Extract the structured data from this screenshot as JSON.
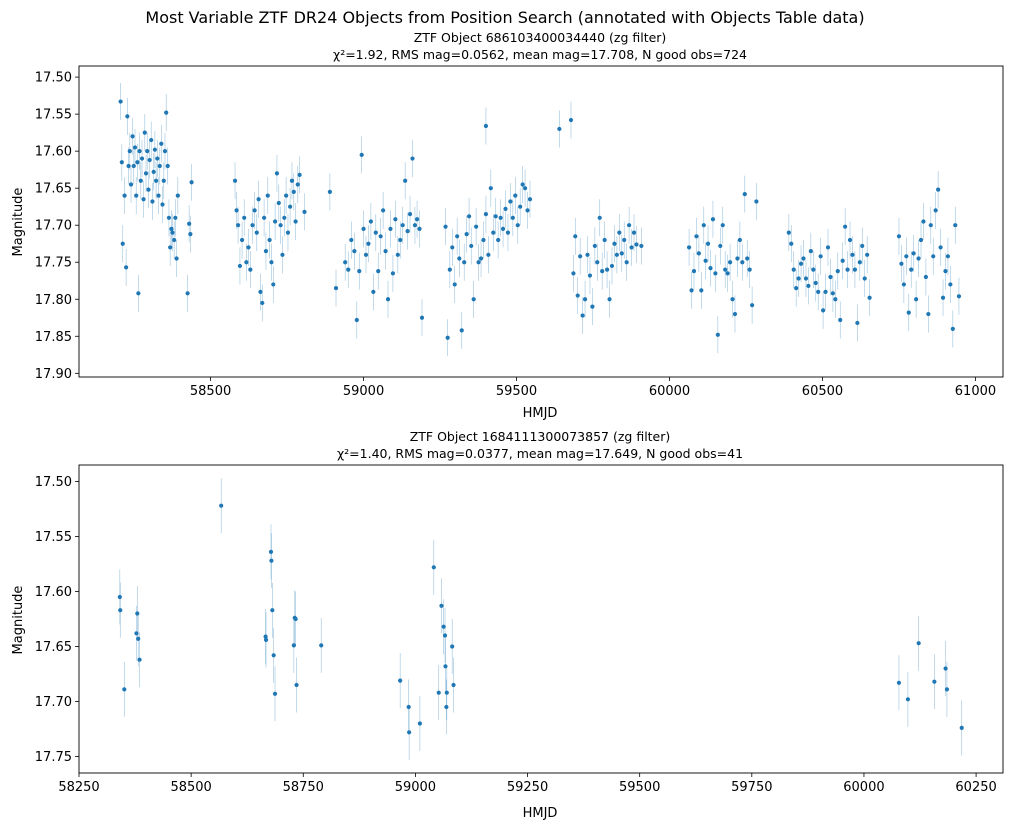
{
  "figure": {
    "suptitle": "Most Variable ZTF DR24 Objects from Position Search (annotated with Objects Table data)"
  },
  "colors": {
    "marker": "#1f77b4",
    "errorbar": "#1f77b4",
    "axes": "#000000"
  },
  "chart_data": [
    {
      "type": "scatter",
      "title": "ZTF Object 686103400034440  (zg filter)",
      "subtitle": "χ²=1.92,  RMS mag=0.0562,  mean mag=17.708,  N good obs=724",
      "xlabel": "HMJD",
      "ylabel": "Magnitude",
      "xlim": [
        58070,
        61090
      ],
      "ylim": [
        17.905,
        17.485
      ],
      "y_inverted": true,
      "xticks": [
        58500,
        59000,
        59500,
        60000,
        60500,
        61000
      ],
      "yticks": [
        17.5,
        17.55,
        17.6,
        17.65,
        17.7,
        17.75,
        17.8,
        17.85,
        17.9
      ],
      "typical_error": 0.025,
      "points": [
        [
          58206,
          17.533
        ],
        [
          58210,
          17.615
        ],
        [
          58213,
          17.725
        ],
        [
          58219,
          17.66
        ],
        [
          58224,
          17.757
        ],
        [
          58228,
          17.553
        ],
        [
          58232,
          17.62
        ],
        [
          58236,
          17.6
        ],
        [
          58240,
          17.645
        ],
        [
          58245,
          17.58
        ],
        [
          58249,
          17.62
        ],
        [
          58253,
          17.595
        ],
        [
          58257,
          17.66
        ],
        [
          58261,
          17.615
        ],
        [
          58264,
          17.792
        ],
        [
          58268,
          17.6
        ],
        [
          58272,
          17.64
        ],
        [
          58276,
          17.61
        ],
        [
          58281,
          17.665
        ],
        [
          58285,
          17.575
        ],
        [
          58289,
          17.63
        ],
        [
          58293,
          17.6
        ],
        [
          58297,
          17.652
        ],
        [
          58301,
          17.612
        ],
        [
          58306,
          17.585
        ],
        [
          58310,
          17.668
        ],
        [
          58314,
          17.628
        ],
        [
          58318,
          17.598
        ],
        [
          58322,
          17.64
        ],
        [
          58326,
          17.61
        ],
        [
          58330,
          17.66
        ],
        [
          58334,
          17.62
        ],
        [
          58339,
          17.59
        ],
        [
          58343,
          17.672
        ],
        [
          58347,
          17.64
        ],
        [
          58351,
          17.6
        ],
        [
          58355,
          17.548
        ],
        [
          58360,
          17.62
        ],
        [
          58364,
          17.69
        ],
        [
          58368,
          17.73
        ],
        [
          58372,
          17.705
        ],
        [
          58376,
          17.71
        ],
        [
          58381,
          17.72
        ],
        [
          58385,
          17.69
        ],
        [
          58389,
          17.745
        ],
        [
          58393,
          17.66
        ],
        [
          58425,
          17.792
        ],
        [
          58430,
          17.698
        ],
        [
          58434,
          17.712
        ],
        [
          58438,
          17.642
        ],
        [
          58580,
          17.64
        ],
        [
          58585,
          17.68
        ],
        [
          58590,
          17.7
        ],
        [
          58596,
          17.755
        ],
        [
          58603,
          17.72
        ],
        [
          58610,
          17.69
        ],
        [
          58617,
          17.75
        ],
        [
          58624,
          17.73
        ],
        [
          58630,
          17.76
        ],
        [
          58637,
          17.7
        ],
        [
          58644,
          17.68
        ],
        [
          58651,
          17.71
        ],
        [
          58657,
          17.665
        ],
        [
          58663,
          17.79
        ],
        [
          58669,
          17.805
        ],
        [
          58675,
          17.69
        ],
        [
          58681,
          17.735
        ],
        [
          58687,
          17.66
        ],
        [
          58693,
          17.72
        ],
        [
          58699,
          17.75
        ],
        [
          58705,
          17.78
        ],
        [
          58711,
          17.695
        ],
        [
          58717,
          17.63
        ],
        [
          58723,
          17.67
        ],
        [
          58729,
          17.7
        ],
        [
          58735,
          17.74
        ],
        [
          58741,
          17.69
        ],
        [
          58747,
          17.66
        ],
        [
          58753,
          17.71
        ],
        [
          58760,
          17.675
        ],
        [
          58766,
          17.64
        ],
        [
          58772,
          17.655
        ],
        [
          58778,
          17.695
        ],
        [
          58785,
          17.645
        ],
        [
          58791,
          17.632
        ],
        [
          58807,
          17.682
        ],
        [
          58890,
          17.655
        ],
        [
          58910,
          17.785
        ],
        [
          58940,
          17.75
        ],
        [
          58950,
          17.76
        ],
        [
          58960,
          17.72
        ],
        [
          58970,
          17.735
        ],
        [
          58978,
          17.828
        ],
        [
          58986,
          17.762
        ],
        [
          58994,
          17.605
        ],
        [
          59000,
          17.705
        ],
        [
          59008,
          17.74
        ],
        [
          59016,
          17.725
        ],
        [
          59024,
          17.695
        ],
        [
          59032,
          17.79
        ],
        [
          59040,
          17.71
        ],
        [
          59048,
          17.762
        ],
        [
          59056,
          17.715
        ],
        [
          59064,
          17.68
        ],
        [
          59072,
          17.735
        ],
        [
          59080,
          17.8
        ],
        [
          59088,
          17.705
        ],
        [
          59096,
          17.765
        ],
        [
          59104,
          17.692
        ],
        [
          59112,
          17.74
        ],
        [
          59120,
          17.72
        ],
        [
          59128,
          17.7
        ],
        [
          59136,
          17.64
        ],
        [
          59144,
          17.708
        ],
        [
          59152,
          17.685
        ],
        [
          59160,
          17.61
        ],
        [
          59168,
          17.7
        ],
        [
          59175,
          17.692
        ],
        [
          59183,
          17.705
        ],
        [
          59191,
          17.825
        ],
        [
          59268,
          17.702
        ],
        [
          59275,
          17.852
        ],
        [
          59282,
          17.76
        ],
        [
          59290,
          17.73
        ],
        [
          59298,
          17.78
        ],
        [
          59306,
          17.715
        ],
        [
          59313,
          17.745
        ],
        [
          59321,
          17.842
        ],
        [
          59329,
          17.75
        ],
        [
          59337,
          17.712
        ],
        [
          59345,
          17.688
        ],
        [
          59352,
          17.728
        ],
        [
          59360,
          17.8
        ],
        [
          59368,
          17.702
        ],
        [
          59376,
          17.75
        ],
        [
          59384,
          17.745
        ],
        [
          59392,
          17.72
        ],
        [
          59400,
          17.685
        ],
        [
          59408,
          17.74
        ],
        [
          59416,
          17.65
        ],
        [
          59424,
          17.71
        ],
        [
          59432,
          17.688
        ],
        [
          59440,
          17.72
        ],
        [
          59448,
          17.69
        ],
        [
          59456,
          17.705
        ],
        [
          59464,
          17.678
        ],
        [
          59472,
          17.71
        ],
        [
          59480,
          17.668
        ],
        [
          59488,
          17.69
        ],
        [
          59496,
          17.66
        ],
        [
          59504,
          17.7
        ],
        [
          59512,
          17.675
        ],
        [
          59520,
          17.645
        ],
        [
          59528,
          17.65
        ],
        [
          59536,
          17.68
        ],
        [
          59544,
          17.665
        ],
        [
          59400,
          17.566
        ],
        [
          59640,
          17.57
        ],
        [
          59678,
          17.558
        ],
        [
          59686,
          17.765
        ],
        [
          59692,
          17.715
        ],
        [
          59700,
          17.795
        ],
        [
          59708,
          17.742
        ],
        [
          59716,
          17.822
        ],
        [
          59724,
          17.8
        ],
        [
          59732,
          17.74
        ],
        [
          59740,
          17.768
        ],
        [
          59748,
          17.81
        ],
        [
          59756,
          17.728
        ],
        [
          59764,
          17.75
        ],
        [
          59772,
          17.69
        ],
        [
          59780,
          17.762
        ],
        [
          59788,
          17.72
        ],
        [
          59796,
          17.76
        ],
        [
          59804,
          17.8
        ],
        [
          59812,
          17.755
        ],
        [
          59820,
          17.725
        ],
        [
          59828,
          17.74
        ],
        [
          59836,
          17.71
        ],
        [
          59844,
          17.738
        ],
        [
          59852,
          17.72
        ],
        [
          59860,
          17.75
        ],
        [
          59868,
          17.7
        ],
        [
          59876,
          17.73
        ],
        [
          59884,
          17.71
        ],
        [
          59892,
          17.726
        ],
        [
          59908,
          17.728
        ],
        [
          60064,
          17.73
        ],
        [
          60072,
          17.788
        ],
        [
          60080,
          17.762
        ],
        [
          60088,
          17.715
        ],
        [
          60096,
          17.738
        ],
        [
          60104,
          17.788
        ],
        [
          60112,
          17.7
        ],
        [
          60118,
          17.748
        ],
        [
          60126,
          17.725
        ],
        [
          60134,
          17.758
        ],
        [
          60142,
          17.692
        ],
        [
          60150,
          17.765
        ],
        [
          60158,
          17.848
        ],
        [
          60166,
          17.728
        ],
        [
          60174,
          17.7
        ],
        [
          60182,
          17.76
        ],
        [
          60190,
          17.765
        ],
        [
          60198,
          17.75
        ],
        [
          60206,
          17.8
        ],
        [
          60214,
          17.82
        ],
        [
          60222,
          17.745
        ],
        [
          60230,
          17.72
        ],
        [
          60238,
          17.75
        ],
        [
          60246,
          17.658
        ],
        [
          60254,
          17.745
        ],
        [
          60262,
          17.76
        ],
        [
          60270,
          17.808
        ],
        [
          60284,
          17.668
        ],
        [
          60390,
          17.71
        ],
        [
          60398,
          17.725
        ],
        [
          60406,
          17.76
        ],
        [
          60414,
          17.785
        ],
        [
          60422,
          17.772
        ],
        [
          60430,
          17.752
        ],
        [
          60438,
          17.745
        ],
        [
          60446,
          17.772
        ],
        [
          60454,
          17.782
        ],
        [
          60462,
          17.735
        ],
        [
          60470,
          17.76
        ],
        [
          60478,
          17.778
        ],
        [
          60486,
          17.79
        ],
        [
          60494,
          17.742
        ],
        [
          60502,
          17.815
        ],
        [
          60510,
          17.79
        ],
        [
          60518,
          17.73
        ],
        [
          60526,
          17.77
        ],
        [
          60534,
          17.792
        ],
        [
          60542,
          17.8
        ],
        [
          60550,
          17.762
        ],
        [
          60558,
          17.828
        ],
        [
          60566,
          17.748
        ],
        [
          60574,
          17.702
        ],
        [
          60582,
          17.76
        ],
        [
          60590,
          17.72
        ],
        [
          60598,
          17.74
        ],
        [
          60606,
          17.76
        ],
        [
          60614,
          17.832
        ],
        [
          60622,
          17.75
        ],
        [
          60630,
          17.728
        ],
        [
          60638,
          17.772
        ],
        [
          60646,
          17.74
        ],
        [
          60654,
          17.798
        ],
        [
          60750,
          17.715
        ],
        [
          60758,
          17.752
        ],
        [
          60766,
          17.78
        ],
        [
          60774,
          17.742
        ],
        [
          60782,
          17.818
        ],
        [
          60790,
          17.76
        ],
        [
          60798,
          17.738
        ],
        [
          60806,
          17.8
        ],
        [
          60814,
          17.745
        ],
        [
          60822,
          17.72
        ],
        [
          60830,
          17.695
        ],
        [
          60838,
          17.77
        ],
        [
          60846,
          17.82
        ],
        [
          60854,
          17.7
        ],
        [
          60862,
          17.742
        ],
        [
          60870,
          17.68
        ],
        [
          60878,
          17.652
        ],
        [
          60886,
          17.73
        ],
        [
          60894,
          17.798
        ],
        [
          60902,
          17.762
        ],
        [
          60910,
          17.742
        ],
        [
          60918,
          17.78
        ],
        [
          60926,
          17.84
        ],
        [
          60934,
          17.7
        ],
        [
          60946,
          17.796
        ]
      ]
    },
    {
      "type": "scatter",
      "title": "ZTF Object 1684111300073857  (zg filter)",
      "subtitle": "χ²=1.40,  RMS mag=0.0377,  mean mag=17.649,  N good obs=41",
      "xlabel": "HMJD",
      "ylabel": "Magnitude",
      "xlim": [
        58250,
        60310
      ],
      "ylim": [
        17.765,
        17.485
      ],
      "y_inverted": true,
      "xticks": [
        58250,
        58500,
        58750,
        59000,
        59250,
        59500,
        59750,
        60000,
        60250
      ],
      "yticks": [
        17.5,
        17.55,
        17.6,
        17.65,
        17.7,
        17.75
      ],
      "typical_error": 0.025,
      "points": [
        [
          58341,
          17.605
        ],
        [
          58342,
          17.617
        ],
        [
          58351,
          17.689
        ],
        [
          58378,
          17.638
        ],
        [
          58380,
          17.62
        ],
        [
          58382,
          17.643
        ],
        [
          58385,
          17.662
        ],
        [
          58567,
          17.522
        ],
        [
          58666,
          17.641
        ],
        [
          58667,
          17.644
        ],
        [
          58678,
          17.564
        ],
        [
          58679,
          17.572
        ],
        [
          58681,
          17.617
        ],
        [
          58684,
          17.658
        ],
        [
          58687,
          17.693
        ],
        [
          58729,
          17.649
        ],
        [
          58731,
          17.624
        ],
        [
          58733,
          17.625
        ],
        [
          58735,
          17.685
        ],
        [
          58790,
          17.649
        ],
        [
          58966,
          17.681
        ],
        [
          58985,
          17.705
        ],
        [
          58986,
          17.728
        ],
        [
          59010,
          17.72
        ],
        [
          59041,
          17.578
        ],
        [
          59052,
          17.692
        ],
        [
          59058,
          17.613
        ],
        [
          59063,
          17.632
        ],
        [
          59066,
          17.64
        ],
        [
          59067,
          17.668
        ],
        [
          59069,
          17.705
        ],
        [
          59070,
          17.692
        ],
        [
          59082,
          17.65
        ],
        [
          59085,
          17.685
        ],
        [
          60078,
          17.683
        ],
        [
          60098,
          17.698
        ],
        [
          60122,
          17.647
        ],
        [
          60157,
          17.682
        ],
        [
          60182,
          17.67
        ],
        [
          60185,
          17.689
        ],
        [
          60218,
          17.724
        ]
      ]
    }
  ]
}
